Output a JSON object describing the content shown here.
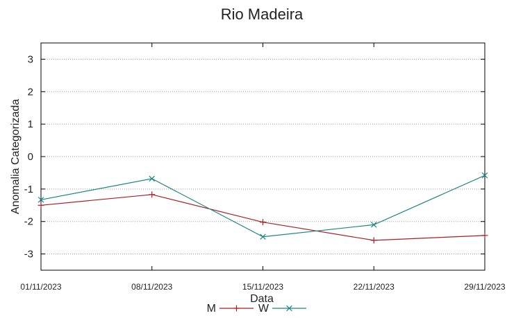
{
  "chart_data": {
    "type": "line",
    "title": "Rio Madeira",
    "xlabel": "Data",
    "ylabel": "Anomalia Categorizada",
    "categories": [
      "01/11/2023",
      "08/11/2023",
      "15/11/2023",
      "22/11/2023",
      "29/11/2023"
    ],
    "ylim": [
      -3.5,
      3.5
    ],
    "yticks": [
      3,
      2,
      1,
      0,
      -1,
      -2,
      -3
    ],
    "grid": true,
    "legend_position": "bottom",
    "series": [
      {
        "name": "M",
        "values": [
          -1.5,
          -1.17,
          -2.02,
          -2.58,
          -2.43
        ],
        "color": "#aa1c22",
        "marker": "plus"
      },
      {
        "name": "W",
        "values": [
          -1.33,
          -0.68,
          -2.47,
          -2.1,
          -0.58
        ],
        "color": "#1b8585",
        "marker": "cross"
      }
    ]
  }
}
